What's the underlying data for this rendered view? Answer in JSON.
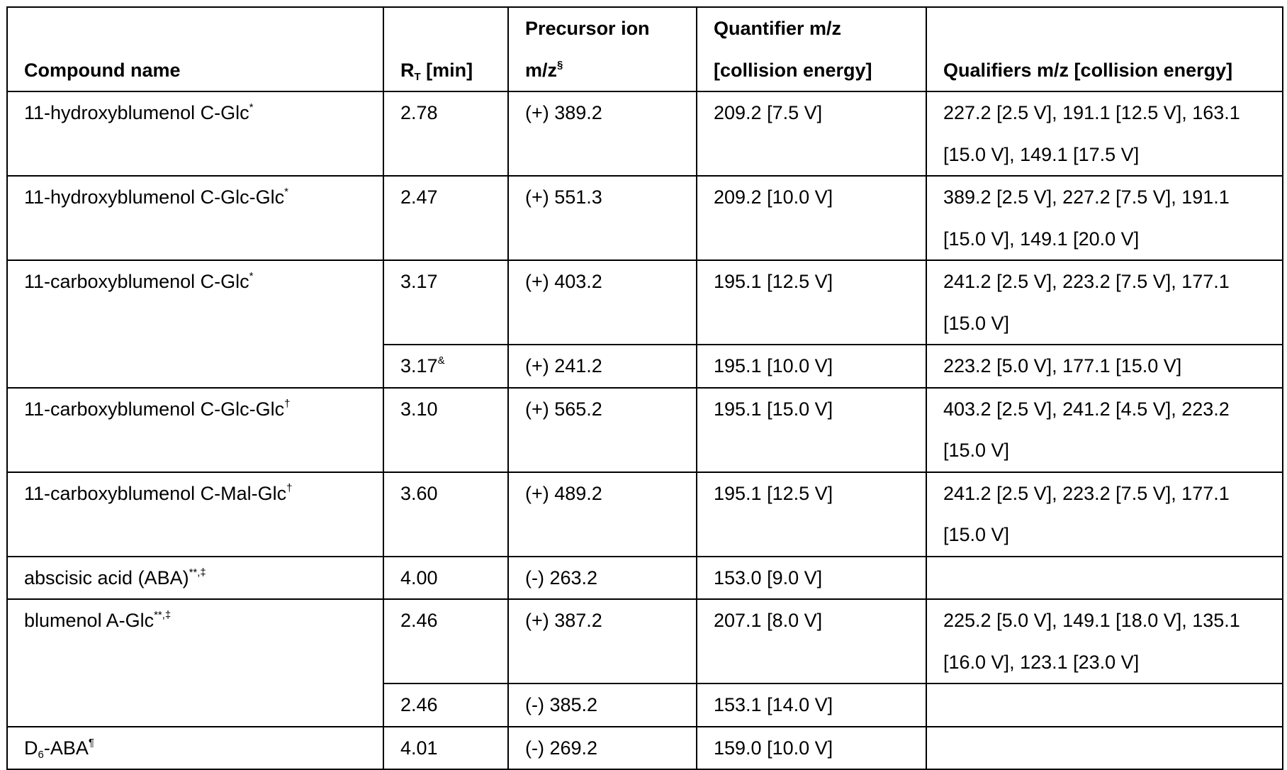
{
  "table": {
    "header": {
      "compound": {
        "text": "Compound name"
      },
      "rt": {
        "text": "R",
        "sub": "T",
        "after": " [min]"
      },
      "precursor": {
        "text": "Precursor ion m/z",
        "sup": "§"
      },
      "quantifier": {
        "text": "Quantifier m/z [collision energy]"
      },
      "qualifiers": {
        "text": "Qualifiers m/z [collision energy]"
      }
    },
    "rows": [
      {
        "compound": {
          "text": "11-hydroxyblumenol C-Glc",
          "sup": "*"
        },
        "entries": [
          {
            "rt": {
              "text": "2.78"
            },
            "precursor": {
              "text": "(+) 389.2"
            },
            "quantifier": {
              "text": "209.2 [7.5 V]"
            },
            "qualifiers": {
              "text": "227.2 [2.5 V], 191.1 [12.5 V], 163.1 [15.0 V], 149.1 [17.5 V]"
            }
          }
        ]
      },
      {
        "compound": {
          "text": "11-hydroxyblumenol C-Glc-Glc",
          "sup": "*"
        },
        "entries": [
          {
            "rt": {
              "text": "2.47"
            },
            "precursor": {
              "text": "(+) 551.3"
            },
            "quantifier": {
              "text": "209.2 [10.0 V]"
            },
            "qualifiers": {
              "text": "389.2 [2.5 V], 227.2 [7.5 V], 191.1 [15.0 V], 149.1 [20.0 V]"
            }
          }
        ]
      },
      {
        "compound": {
          "text": "11-carboxyblumenol C-Glc",
          "sup": "*"
        },
        "entries": [
          {
            "rt": {
              "text": "3.17"
            },
            "precursor": {
              "text": "(+) 403.2"
            },
            "quantifier": {
              "text": "195.1 [12.5 V]"
            },
            "qualifiers": {
              "text": "241.2 [2.5 V], 223.2 [7.5 V], 177.1 [15.0 V]"
            }
          },
          {
            "rt": {
              "text": "3.17",
              "sup": "&"
            },
            "precursor": {
              "text": "(+) 241.2"
            },
            "quantifier": {
              "text": "195.1 [10.0 V]"
            },
            "qualifiers": {
              "text": "223.2 [5.0 V], 177.1 [15.0 V]"
            }
          }
        ]
      },
      {
        "compound": {
          "text": "11-carboxyblumenol C-Glc-Glc",
          "sup": "†"
        },
        "entries": [
          {
            "rt": {
              "text": "3.10"
            },
            "precursor": {
              "text": "(+) 565.2"
            },
            "quantifier": {
              "text": "195.1 [15.0 V]"
            },
            "qualifiers": {
              "text": "403.2 [2.5 V], 241.2 [4.5 V], 223.2 [15.0 V]"
            }
          }
        ]
      },
      {
        "compound": {
          "text": "11-carboxyblumenol C-Mal-Glc",
          "sup": "†"
        },
        "entries": [
          {
            "rt": {
              "text": "3.60"
            },
            "precursor": {
              "text": "(+) 489.2"
            },
            "quantifier": {
              "text": "195.1 [12.5 V]"
            },
            "qualifiers": {
              "text": "241.2 [2.5 V], 223.2 [7.5 V], 177.1 [15.0 V]"
            }
          }
        ]
      },
      {
        "compound": {
          "text": "abscisic acid (ABA)",
          "sup": "**,‡"
        },
        "entries": [
          {
            "rt": {
              "text": "4.00"
            },
            "precursor": {
              "text": "(-) 263.2"
            },
            "quantifier": {
              "text": "153.0 [9.0 V]"
            }
          }
        ]
      },
      {
        "compound": {
          "text": "blumenol A-Glc",
          "sup": "**,‡"
        },
        "entries": [
          {
            "rt": {
              "text": "2.46"
            },
            "precursor": {
              "text": "(+) 387.2"
            },
            "quantifier": {
              "text": "207.1 [8.0 V]"
            },
            "qualifiers": {
              "text": "225.2 [5.0 V], 149.1 [18.0 V], 135.1 [16.0 V], 123.1 [23.0 V]"
            }
          },
          {
            "rt": {
              "text": "2.46"
            },
            "precursor": {
              "text": "(-) 385.2"
            },
            "quantifier": {
              "text": "153.1 [14.0 V]"
            }
          }
        ]
      },
      {
        "compound": {
          "text": "D",
          "sub": "6",
          "after": "-ABA",
          "sup": "¶"
        },
        "entries": [
          {
            "rt": {
              "text": "4.01"
            },
            "precursor": {
              "text": "(-) 269.2"
            },
            "quantifier": {
              "text": "159.0 [10.0 V]"
            }
          }
        ]
      }
    ]
  }
}
